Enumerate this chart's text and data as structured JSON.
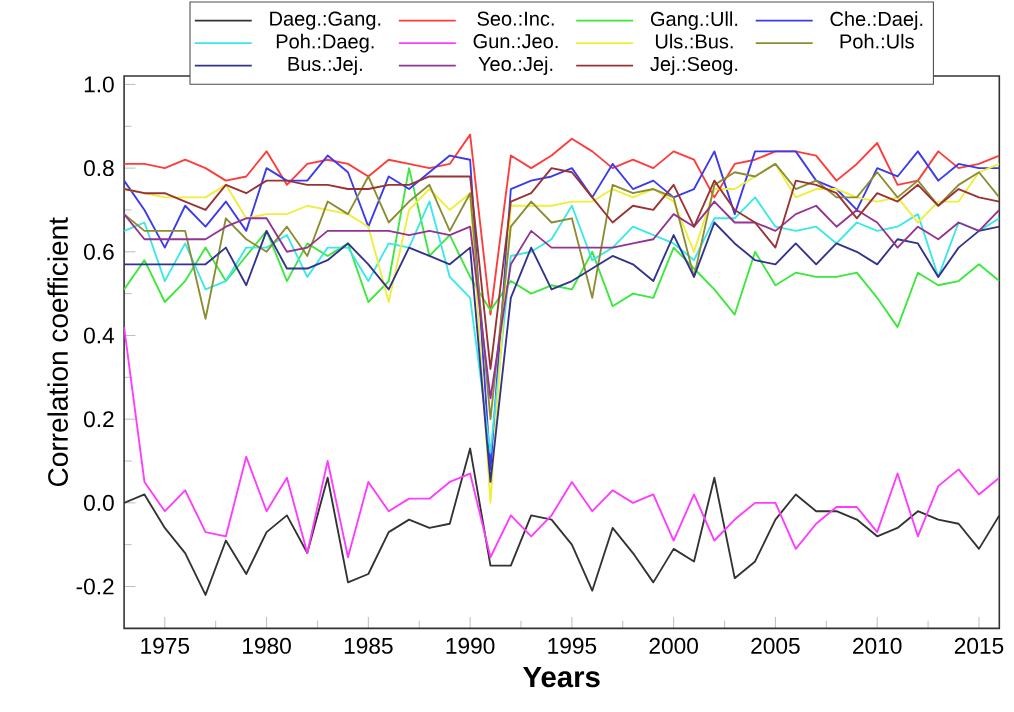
{
  "chart_data": {
    "type": "line",
    "xlabel": "Years",
    "ylabel": "Correlation coefficient",
    "legend": "top",
    "grid": false,
    "marker": "none",
    "line_style": "solid",
    "xlim": [
      1973,
      2016
    ],
    "ylim": [
      -0.3,
      1.02
    ],
    "xticks": [
      1975,
      1980,
      1985,
      1990,
      1995,
      2000,
      2005,
      2010,
      2015
    ],
    "yticks": [
      -0.2,
      {
        "value": 0,
        "label": "0.0"
      },
      0.2,
      0.4,
      0.6,
      0.8,
      {
        "value": 1,
        "label": "1.0"
      }
    ],
    "x": [
      1973,
      1974,
      1975,
      1976,
      1977,
      1978,
      1979,
      1980,
      1981,
      1982,
      1983,
      1984,
      1985,
      1986,
      1987,
      1988,
      1989,
      1990,
      1991,
      1992,
      1993,
      1994,
      1995,
      1996,
      1997,
      1998,
      1999,
      2000,
      2001,
      2002,
      2003,
      2004,
      2005,
      2006,
      2007,
      2008,
      2009,
      2010,
      2011,
      2012,
      2013,
      2014,
      2015,
      2016
    ],
    "series": [
      {
        "name": "Daeg.:Gang.",
        "color": "#333333",
        "values": [
          0.0,
          0.02,
          -0.06,
          -0.12,
          -0.22,
          -0.09,
          -0.17,
          -0.07,
          -0.03,
          -0.12,
          0.06,
          -0.19,
          -0.17,
          -0.07,
          -0.04,
          -0.06,
          -0.05,
          0.13,
          -0.15,
          -0.15,
          -0.03,
          -0.04,
          -0.1,
          -0.21,
          -0.06,
          -0.12,
          -0.19,
          -0.11,
          -0.14,
          0.06,
          -0.18,
          -0.14,
          -0.04,
          0.02,
          -0.02,
          -0.02,
          -0.04,
          -0.08,
          -0.06,
          -0.02,
          -0.04,
          -0.05,
          -0.11,
          -0.03
        ]
      },
      {
        "name": "Seo.:Inc.",
        "color": "#ff3b3b",
        "values": [
          0.81,
          0.81,
          0.8,
          0.82,
          0.8,
          0.77,
          0.78,
          0.84,
          0.76,
          0.81,
          0.82,
          0.81,
          0.78,
          0.82,
          0.81,
          0.8,
          0.81,
          0.88,
          0.45,
          0.83,
          0.8,
          0.83,
          0.87,
          0.84,
          0.8,
          0.82,
          0.8,
          0.84,
          0.82,
          0.73,
          0.81,
          0.82,
          0.84,
          0.84,
          0.83,
          0.77,
          0.81,
          0.86,
          0.76,
          0.77,
          0.84,
          0.8,
          0.81,
          0.83
        ]
      },
      {
        "name": "Gang.:Ull.",
        "color": "#3be83b",
        "values": [
          0.51,
          0.58,
          0.48,
          0.53,
          0.61,
          0.53,
          0.59,
          0.65,
          0.53,
          0.62,
          0.59,
          0.62,
          0.48,
          0.53,
          0.8,
          0.59,
          0.64,
          0.54,
          0.46,
          0.53,
          0.5,
          0.52,
          0.51,
          0.6,
          0.47,
          0.5,
          0.49,
          0.61,
          0.56,
          0.51,
          0.45,
          0.6,
          0.52,
          0.55,
          0.54,
          0.54,
          0.55,
          0.49,
          0.42,
          0.55,
          0.52,
          0.53,
          0.57,
          0.53
        ]
      },
      {
        "name": "Che.:Daej.",
        "color": "#3b3bee",
        "values": [
          0.77,
          0.7,
          0.61,
          0.71,
          0.66,
          0.72,
          0.65,
          0.8,
          0.77,
          0.77,
          0.83,
          0.79,
          0.66,
          0.78,
          0.75,
          0.79,
          0.83,
          0.82,
          0.08,
          0.75,
          0.77,
          0.78,
          0.8,
          0.73,
          0.81,
          0.75,
          0.77,
          0.73,
          0.75,
          0.84,
          0.69,
          0.84,
          0.84,
          0.84,
          0.77,
          0.75,
          0.7,
          0.8,
          0.78,
          0.84,
          0.77,
          0.81,
          0.8,
          0.8
        ]
      },
      {
        "name": "Poh.:Daeg.",
        "color": "#3be8e8",
        "values": [
          0.65,
          0.67,
          0.53,
          0.62,
          0.51,
          0.53,
          0.61,
          0.61,
          0.64,
          0.54,
          0.61,
          0.61,
          0.53,
          0.62,
          0.61,
          0.72,
          0.54,
          0.49,
          0.12,
          0.59,
          0.6,
          0.63,
          0.71,
          0.58,
          0.61,
          0.66,
          0.64,
          0.62,
          0.58,
          0.68,
          0.68,
          0.73,
          0.66,
          0.65,
          0.66,
          0.62,
          0.67,
          0.65,
          0.66,
          0.69,
          0.54,
          0.67,
          0.65,
          0.68
        ]
      },
      {
        "name": "Gun.:Jeo.",
        "color": "#ff3bff",
        "values": [
          0.42,
          0.05,
          -0.02,
          0.03,
          -0.07,
          -0.08,
          0.11,
          -0.02,
          0.06,
          -0.12,
          0.1,
          -0.13,
          0.05,
          -0.02,
          0.01,
          0.01,
          0.05,
          0.07,
          -0.13,
          -0.03,
          -0.08,
          -0.03,
          0.05,
          -0.02,
          0.03,
          0.0,
          0.02,
          -0.09,
          0.02,
          -0.09,
          -0.04,
          0.0,
          0.0,
          -0.11,
          -0.05,
          -0.01,
          -0.01,
          -0.07,
          0.07,
          -0.08,
          0.04,
          0.08,
          0.02,
          0.06
        ]
      },
      {
        "name": "Uls.:Bus.",
        "color": "#eeee3b",
        "values": [
          0.75,
          0.74,
          0.73,
          0.73,
          0.73,
          0.76,
          0.68,
          0.69,
          0.69,
          0.71,
          0.7,
          0.69,
          0.66,
          0.48,
          0.7,
          0.75,
          0.7,
          0.74,
          0.0,
          0.71,
          0.71,
          0.71,
          0.72,
          0.72,
          0.75,
          0.73,
          0.75,
          0.72,
          0.6,
          0.75,
          0.75,
          0.78,
          0.81,
          0.73,
          0.75,
          0.75,
          0.73,
          0.72,
          0.73,
          0.67,
          0.72,
          0.72,
          0.79,
          0.81
        ]
      },
      {
        "name": "Poh.:Uls",
        "color": "#8c8c33",
        "values": [
          0.69,
          0.65,
          0.65,
          0.65,
          0.44,
          0.68,
          0.63,
          0.6,
          0.66,
          0.59,
          0.72,
          0.69,
          0.78,
          0.67,
          0.72,
          0.76,
          0.65,
          0.74,
          0.2,
          0.66,
          0.72,
          0.67,
          0.68,
          0.49,
          0.76,
          0.74,
          0.75,
          0.73,
          0.54,
          0.76,
          0.79,
          0.78,
          0.81,
          0.75,
          0.77,
          0.73,
          0.73,
          0.79,
          0.73,
          0.77,
          0.71,
          0.76,
          0.79,
          0.73
        ]
      },
      {
        "name": "Bus.:Jej.",
        "color": "#33338f",
        "values": [
          0.57,
          0.57,
          0.57,
          0.57,
          0.57,
          0.61,
          0.52,
          0.65,
          0.56,
          0.56,
          0.58,
          0.62,
          0.57,
          0.51,
          0.61,
          0.59,
          0.57,
          0.61,
          0.05,
          0.49,
          0.61,
          0.51,
          0.53,
          0.56,
          0.59,
          0.57,
          0.53,
          0.64,
          0.54,
          0.67,
          0.62,
          0.58,
          0.57,
          0.62,
          0.57,
          0.62,
          0.6,
          0.57,
          0.63,
          0.62,
          0.54,
          0.61,
          0.65,
          0.66
        ]
      },
      {
        "name": "Yeo.:Jej.",
        "color": "#933393",
        "values": [
          0.69,
          0.63,
          0.63,
          0.63,
          0.63,
          0.66,
          0.68,
          0.68,
          0.6,
          0.61,
          0.65,
          0.65,
          0.65,
          0.65,
          0.64,
          0.65,
          0.64,
          0.66,
          0.25,
          0.57,
          0.65,
          0.61,
          0.61,
          0.61,
          0.61,
          0.62,
          0.63,
          0.69,
          0.66,
          0.72,
          0.67,
          0.67,
          0.65,
          0.69,
          0.71,
          0.66,
          0.7,
          0.67,
          0.61,
          0.66,
          0.63,
          0.67,
          0.65,
          0.7
        ]
      },
      {
        "name": "Jej.:Seog.",
        "color": "#993333",
        "values": [
          0.75,
          0.74,
          0.74,
          0.72,
          0.7,
          0.76,
          0.74,
          0.77,
          0.77,
          0.76,
          0.76,
          0.75,
          0.75,
          0.76,
          0.76,
          0.78,
          0.78,
          0.78,
          0.32,
          0.72,
          0.74,
          0.8,
          0.79,
          0.73,
          0.67,
          0.71,
          0.7,
          0.76,
          0.66,
          0.77,
          0.7,
          0.67,
          0.61,
          0.77,
          0.76,
          0.74,
          0.68,
          0.74,
          0.72,
          0.76,
          0.71,
          0.75,
          0.73,
          0.72
        ]
      }
    ]
  }
}
